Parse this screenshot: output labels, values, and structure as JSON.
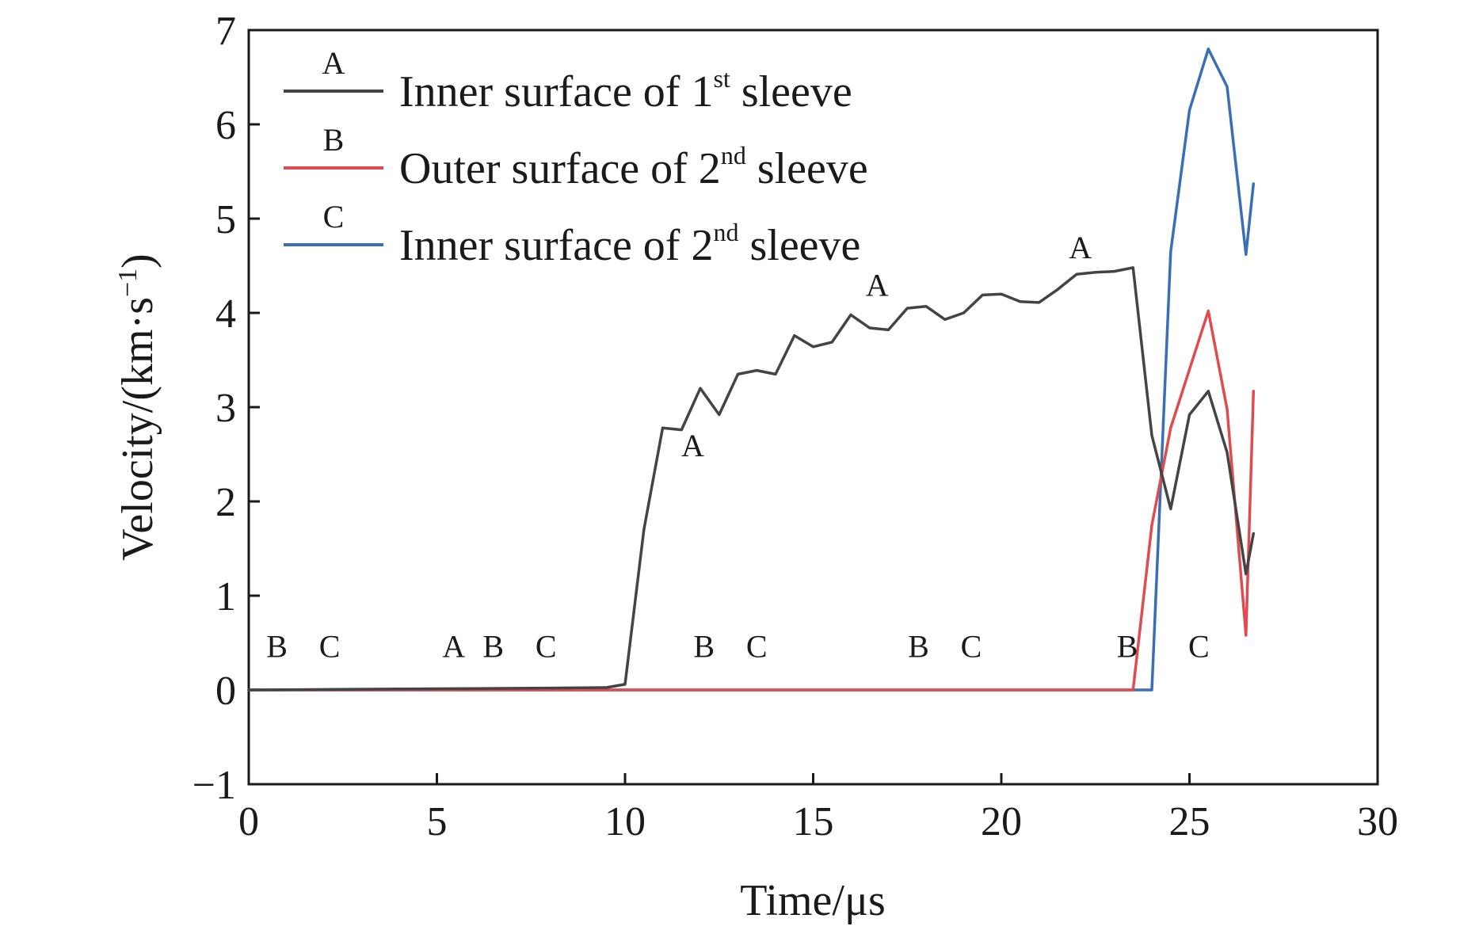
{
  "chart_data": {
    "type": "line",
    "title": "",
    "xlabel": "Time/μs",
    "ylabel_main": "Velocity/(km·s",
    "ylabel_sup": "−1",
    "ylabel_close": ")",
    "xlim": [
      0,
      30
    ],
    "ylim": [
      -1,
      7
    ],
    "x_ticks": [
      0,
      5,
      10,
      15,
      20,
      25,
      30
    ],
    "x_tick_labels": [
      "0",
      "5",
      "10",
      "15",
      "20",
      "25",
      "30"
    ],
    "y_ticks": [
      -1,
      0,
      1,
      2,
      3,
      4,
      5,
      6,
      7
    ],
    "y_tick_labels": [
      "−1",
      "0",
      "1",
      "2",
      "3",
      "4",
      "5",
      "6",
      "7"
    ],
    "grid": false,
    "legend_position": "top-left",
    "series": [
      {
        "key": "A",
        "name_main": "Inner surface of 1",
        "name_sup": "st",
        "name_tail": " sleeve",
        "color": "#444444",
        "x": [
          0,
          2,
          4,
          6,
          8,
          9.5,
          10,
          10.5,
          11,
          11.5,
          12,
          12.5,
          13,
          13.5,
          14,
          14.5,
          15,
          15.5,
          16,
          16.5,
          17,
          17.5,
          18,
          18.5,
          19,
          19.5,
          20,
          20.5,
          21,
          21.5,
          22,
          22.5,
          23,
          23.5,
          24,
          24.5,
          25,
          25.5,
          26,
          26.5,
          26.7
        ],
        "y": [
          0,
          0.005,
          0.01,
          0.015,
          0.02,
          0.025,
          0.06,
          1.7,
          2.78,
          2.76,
          3.2,
          2.92,
          3.35,
          3.39,
          3.35,
          3.76,
          3.64,
          3.69,
          3.98,
          3.84,
          3.82,
          4.05,
          4.07,
          3.93,
          4.0,
          4.19,
          4.2,
          4.12,
          4.11,
          4.25,
          4.41,
          4.43,
          4.44,
          4.48,
          2.7,
          1.92,
          2.92,
          3.17,
          2.52,
          1.23,
          1.66
        ]
      },
      {
        "key": "B",
        "name_main": "Outer surface of 2",
        "name_sup": "nd",
        "name_tail": " sleeve",
        "color": "#e04b50",
        "x": [
          0,
          23.5,
          24,
          24.5,
          25,
          25.5,
          26,
          26.5,
          26.7
        ],
        "y": [
          0,
          0,
          1.75,
          2.78,
          3.4,
          4.02,
          2.98,
          0.58,
          3.17
        ]
      },
      {
        "key": "C",
        "name_main": "Inner surface of 2",
        "name_sup": "nd",
        "name_tail": " sleeve",
        "color": "#3a6fb8",
        "x": [
          0,
          24,
          24.5,
          25,
          25.5,
          26,
          26.5,
          26.7
        ],
        "y": [
          0,
          0,
          4.65,
          6.15,
          6.8,
          6.4,
          4.62,
          5.37
        ]
      }
    ],
    "annotations": [
      {
        "text": "B",
        "x": 0.75,
        "y": 0.35
      },
      {
        "text": "C",
        "x": 2.15,
        "y": 0.35
      },
      {
        "text": "A",
        "x": 5.45,
        "y": 0.35
      },
      {
        "text": "B",
        "x": 6.5,
        "y": 0.35
      },
      {
        "text": "C",
        "x": 7.9,
        "y": 0.35
      },
      {
        "text": "B",
        "x": 12.1,
        "y": 0.35
      },
      {
        "text": "C",
        "x": 13.5,
        "y": 0.35
      },
      {
        "text": "B",
        "x": 17.8,
        "y": 0.35
      },
      {
        "text": "C",
        "x": 19.2,
        "y": 0.35
      },
      {
        "text": "B",
        "x": 23.35,
        "y": 0.35
      },
      {
        "text": "C",
        "x": 25.25,
        "y": 0.35
      },
      {
        "text": "A",
        "x": 11.8,
        "y": 2.48
      },
      {
        "text": "A",
        "x": 16.7,
        "y": 4.18
      },
      {
        "text": "A",
        "x": 22.1,
        "y": 4.58
      }
    ]
  }
}
